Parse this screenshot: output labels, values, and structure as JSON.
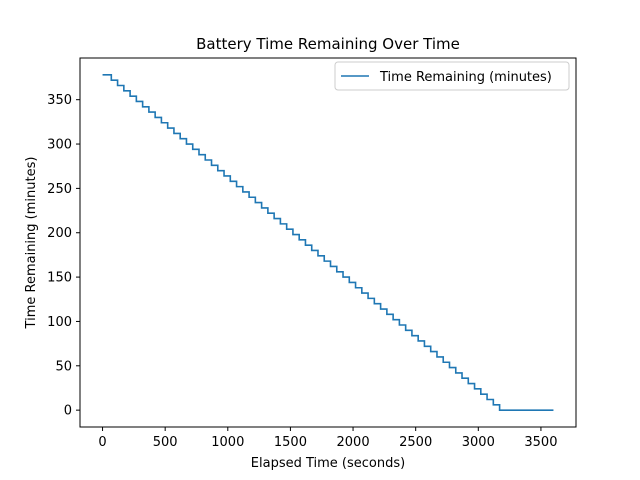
{
  "chart_data": {
    "type": "line",
    "title": "Battery Time Remaining Over Time",
    "xlabel": "Elapsed Time (seconds)",
    "ylabel": "Time Remaining (minutes)",
    "xlim": [
      -180,
      3780
    ],
    "ylim": [
      -19,
      397
    ],
    "xticks": [
      0,
      500,
      1000,
      1500,
      2000,
      2500,
      3000,
      3500
    ],
    "yticks": [
      0,
      50,
      100,
      150,
      200,
      250,
      300,
      350
    ],
    "grid": false,
    "legend_position": "top-right",
    "series": [
      {
        "name": "Time Remaining (minutes)",
        "color": "#1f77b4",
        "line_style": "step",
        "x": [
          0,
          70,
          120,
          170,
          220,
          270,
          320,
          370,
          420,
          470,
          520,
          570,
          620,
          670,
          720,
          770,
          820,
          870,
          920,
          970,
          1020,
          1070,
          1120,
          1170,
          1220,
          1270,
          1320,
          1370,
          1420,
          1470,
          1520,
          1570,
          1620,
          1670,
          1720,
          1770,
          1820,
          1870,
          1920,
          1970,
          2020,
          2070,
          2120,
          2170,
          2220,
          2270,
          2320,
          2370,
          2420,
          2470,
          2520,
          2570,
          2620,
          2670,
          2720,
          2770,
          2820,
          2870,
          2920,
          2970,
          3020,
          3070,
          3120,
          3170,
          3220,
          3270,
          3330,
          3600
        ],
        "y": [
          378,
          372,
          366,
          360,
          354,
          348,
          342,
          336,
          330,
          324,
          318,
          312,
          306,
          300,
          294,
          288,
          282,
          276,
          270,
          264,
          258,
          252,
          246,
          240,
          234,
          228,
          222,
          216,
          210,
          204,
          198,
          192,
          186,
          180,
          174,
          168,
          162,
          156,
          150,
          144,
          138,
          132,
          126,
          120,
          114,
          108,
          102,
          96,
          90,
          84,
          78,
          72,
          66,
          60,
          54,
          48,
          42,
          36,
          30,
          24,
          18,
          12,
          6,
          0,
          0,
          0,
          0,
          0
        ]
      }
    ]
  }
}
